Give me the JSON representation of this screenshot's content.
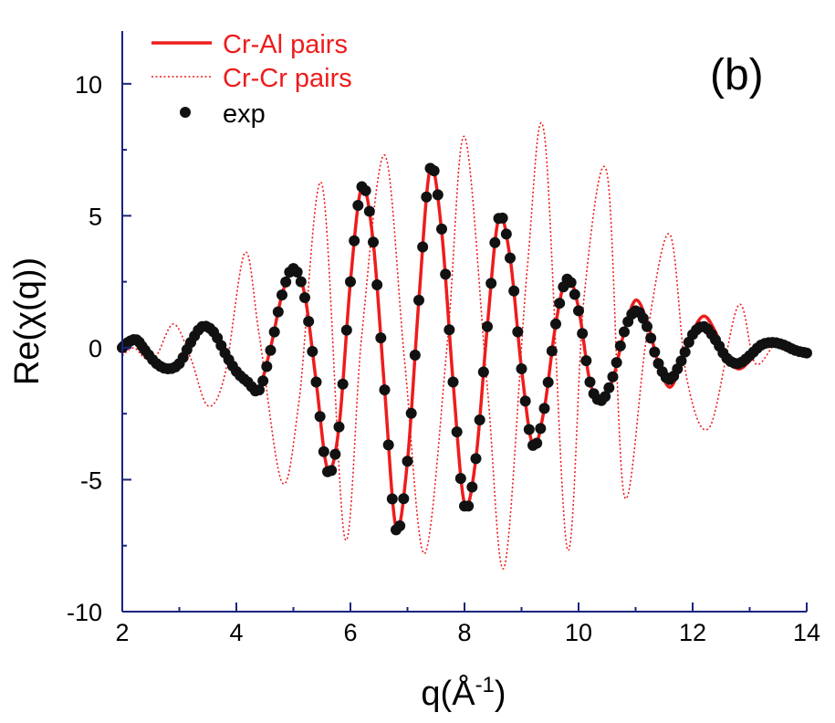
{
  "chart_data": {
    "type": "line",
    "panel_label": "(b)",
    "xlabel": {
      "base": "q(Å",
      "sup": "-1",
      "close": ")"
    },
    "ylabel": "Re(χ(q))",
    "xlim": [
      2,
      14
    ],
    "ylim": [
      -10,
      12
    ],
    "x_ticks": [
      2,
      4,
      6,
      8,
      10,
      12,
      14
    ],
    "y_ticks": [
      10,
      5,
      0,
      -5,
      -10
    ],
    "grid": false,
    "legend_placement": "top-left",
    "series": [
      {
        "name": "Cr-Al pairs",
        "style": "solid",
        "color": "#ee1c1c",
        "x": [
          2.0,
          2.1,
          2.25,
          2.4,
          2.6,
          2.8,
          3.0,
          3.2,
          3.4,
          3.6,
          3.8,
          4.0,
          4.2,
          4.4,
          4.6,
          4.8,
          5.0,
          5.2,
          5.4,
          5.6,
          5.8,
          6.0,
          6.2,
          6.4,
          6.6,
          6.8,
          7.0,
          7.2,
          7.4,
          7.6,
          7.8,
          8.0,
          8.2,
          8.4,
          8.6,
          8.8,
          9.0,
          9.2,
          9.4,
          9.6,
          9.8,
          10.0,
          10.2,
          10.4,
          10.6,
          10.8,
          11.0,
          11.2,
          11.4,
          11.6,
          11.8,
          12.0,
          12.2,
          12.4,
          12.6,
          12.8,
          13.0,
          13.2,
          13.4,
          13.6,
          13.8,
          14.0
        ],
        "y": [
          0.0,
          0.1,
          0.2,
          -0.1,
          -0.6,
          -0.8,
          -0.5,
          0.2,
          0.7,
          0.5,
          -0.2,
          -0.9,
          -1.3,
          -1.5,
          0.0,
          2.0,
          3.0,
          2.0,
          -1.3,
          -4.6,
          -3.0,
          2.5,
          6.1,
          4.0,
          -1.6,
          -6.8,
          -4.3,
          1.8,
          6.8,
          4.4,
          -1.3,
          -5.9,
          -4.2,
          0.8,
          4.9,
          3.4,
          -0.8,
          -3.7,
          -2.3,
          0.9,
          2.7,
          1.5,
          -1.3,
          -2.0,
          -1.2,
          0.6,
          1.8,
          1.0,
          -0.6,
          -1.5,
          -0.6,
          0.6,
          1.2,
          0.6,
          -0.4,
          -0.8,
          -0.5,
          0.1,
          0.3,
          0.2,
          -0.1,
          -0.1
        ]
      },
      {
        "name": "Cr-Cr pairs",
        "style": "dotted",
        "color": "#ee1c1c",
        "x": [
          2.0,
          2.2,
          2.4,
          2.6,
          2.9,
          3.2,
          3.5,
          3.8,
          4.15,
          4.4,
          4.8,
          5.1,
          5.5,
          5.9,
          6.2,
          6.6,
          6.95,
          7.3,
          7.7,
          8.0,
          8.4,
          8.7,
          9.1,
          9.4,
          9.8,
          10.1,
          10.5,
          10.8,
          11.2,
          11.6,
          11.9,
          12.3,
          12.8,
          13.1,
          13.5,
          14.0
        ],
        "y": [
          -0.3,
          0.0,
          -0.4,
          -0.3,
          0.9,
          -0.4,
          -2.2,
          -1.0,
          3.6,
          0.5,
          -5.1,
          -2.0,
          6.2,
          -7.2,
          0.5,
          7.3,
          -0.5,
          -7.8,
          0.2,
          8.0,
          -1.5,
          -8.3,
          3.0,
          8.1,
          -7.6,
          2.0,
          6.6,
          -5.6,
          0.5,
          4.3,
          -1.2,
          -3.0,
          1.6,
          -0.6,
          0.2,
          -0.1
        ]
      },
      {
        "name": "exp",
        "style": "markers",
        "color": "#111111",
        "x": [
          2.0,
          2.1,
          2.25,
          2.4,
          2.6,
          2.8,
          3.0,
          3.2,
          3.4,
          3.6,
          3.8,
          4.0,
          4.2,
          4.4,
          4.6,
          4.8,
          5.0,
          5.2,
          5.4,
          5.6,
          5.8,
          6.0,
          6.2,
          6.4,
          6.6,
          6.8,
          7.0,
          7.2,
          7.4,
          7.6,
          7.8,
          8.0,
          8.2,
          8.4,
          8.6,
          8.8,
          9.0,
          9.2,
          9.4,
          9.6,
          9.8,
          10.0,
          10.2,
          10.4,
          10.6,
          10.8,
          11.0,
          11.2,
          11.4,
          11.6,
          11.8,
          12.0,
          12.2,
          12.4,
          12.6,
          12.8,
          13.0,
          13.2,
          13.4,
          13.6,
          13.8,
          14.0
        ],
        "y": [
          0.0,
          0.2,
          0.3,
          -0.1,
          -0.6,
          -0.8,
          -0.6,
          0.2,
          0.8,
          0.6,
          -0.2,
          -0.9,
          -1.3,
          -1.6,
          -0.1,
          2.0,
          3.0,
          1.9,
          -1.3,
          -4.7,
          -3.0,
          2.5,
          6.1,
          4.0,
          -1.6,
          -6.9,
          -4.3,
          1.8,
          6.8,
          4.5,
          -1.3,
          -6.0,
          -4.2,
          0.8,
          4.9,
          3.4,
          -0.8,
          -3.7,
          -2.3,
          0.9,
          2.6,
          1.4,
          -1.3,
          -2.0,
          -1.1,
          0.6,
          1.4,
          0.8,
          -0.6,
          -1.2,
          -0.5,
          0.5,
          0.8,
          0.3,
          -0.4,
          -0.6,
          -0.3,
          0.1,
          0.2,
          0.1,
          -0.1,
          -0.2
        ]
      }
    ]
  }
}
